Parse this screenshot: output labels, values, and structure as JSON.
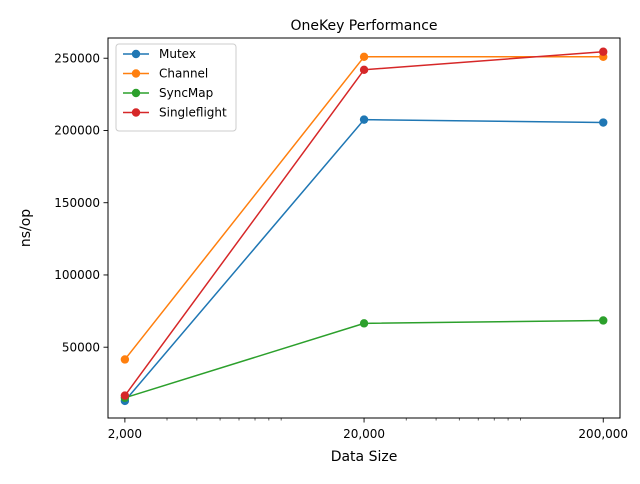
{
  "chart_data": {
    "type": "line",
    "title": "OneKey Performance",
    "xlabel": "Data Size",
    "ylabel": "ns/op",
    "xscale": "log",
    "x": [
      2000,
      20000,
      200000
    ],
    "x_tick_labels": [
      "2,000",
      "20,000",
      "200,000"
    ],
    "xlim": [
      1700,
      235000
    ],
    "y_ticks": [
      50000,
      100000,
      150000,
      200000,
      250000
    ],
    "y_tick_labels": [
      "50000",
      "100000",
      "150000",
      "200000",
      "250000"
    ],
    "ylim": [
      1000,
      264000
    ],
    "grid": false,
    "legend_position": "top-left",
    "series": [
      {
        "name": "Mutex",
        "color": "#1f77b4",
        "values": [
          12800,
          207500,
          205500
        ]
      },
      {
        "name": "Channel",
        "color": "#ff7f0e",
        "values": [
          41500,
          251000,
          251000
        ]
      },
      {
        "name": "SyncMap",
        "color": "#2ca02c",
        "values": [
          15000,
          66500,
          68500
        ]
      },
      {
        "name": "Singleflight",
        "color": "#d62728",
        "values": [
          16500,
          242000,
          254500
        ]
      }
    ]
  }
}
